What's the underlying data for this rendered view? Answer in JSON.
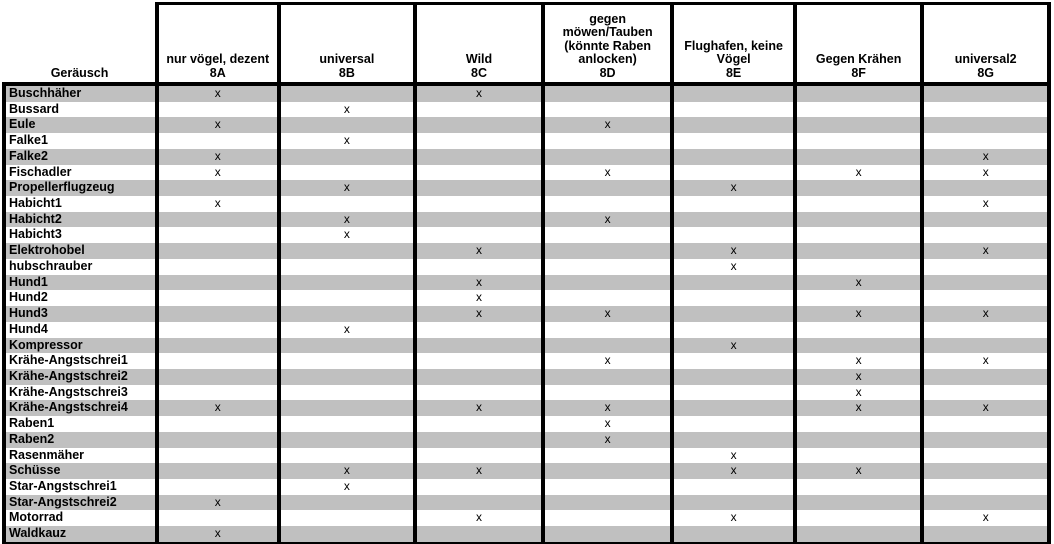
{
  "table": {
    "corner_header": "Geräusch",
    "mark_glyph": "x",
    "colors": {
      "stripe": "#c0c0c0",
      "border": "#000000",
      "background": "#ffffff",
      "text": "#000000"
    },
    "columns": [
      {
        "code": "8A",
        "label_lines": [
          "nur vögel, dezent"
        ]
      },
      {
        "code": "8B",
        "label_lines": [
          "universal"
        ]
      },
      {
        "code": "8C",
        "label_lines": [
          "Wild"
        ]
      },
      {
        "code": "8D",
        "label_lines": [
          "gegen",
          "möwen/Tauben",
          "(könnte Raben",
          "anlocken)"
        ]
      },
      {
        "code": "8E",
        "label_lines": [
          "Flughafen, keine",
          "Vögel"
        ]
      },
      {
        "code": "8F",
        "label_lines": [
          "Gegen Krähen"
        ]
      },
      {
        "code": "8G",
        "label_lines": [
          "universal2"
        ]
      }
    ],
    "rows": [
      {
        "label": "Buschhäher",
        "marks": [
          "8A",
          "8C"
        ]
      },
      {
        "label": "Bussard",
        "marks": [
          "8B"
        ]
      },
      {
        "label": "Eule",
        "marks": [
          "8A",
          "8D"
        ]
      },
      {
        "label": "Falke1",
        "marks": [
          "8B"
        ]
      },
      {
        "label": "Falke2",
        "marks": [
          "8A",
          "8G"
        ]
      },
      {
        "label": "Fischadler",
        "marks": [
          "8A",
          "8D",
          "8F",
          "8G"
        ]
      },
      {
        "label": "Propellerflugzeug",
        "marks": [
          "8B",
          "8E"
        ]
      },
      {
        "label": "Habicht1",
        "marks": [
          "8A",
          "8G"
        ]
      },
      {
        "label": "Habicht2",
        "marks": [
          "8B",
          "8D"
        ]
      },
      {
        "label": "Habicht3",
        "marks": [
          "8B"
        ]
      },
      {
        "label": "Elektrohobel",
        "marks": [
          "8C",
          "8E",
          "8G"
        ]
      },
      {
        "label": "hubschrauber",
        "marks": [
          "8E"
        ]
      },
      {
        "label": "Hund1",
        "marks": [
          "8C",
          "8F"
        ]
      },
      {
        "label": "Hund2",
        "marks": [
          "8C"
        ]
      },
      {
        "label": "Hund3",
        "marks": [
          "8C",
          "8D",
          "8F",
          "8G"
        ]
      },
      {
        "label": "Hund4",
        "marks": [
          "8B"
        ]
      },
      {
        "label": "Kompressor",
        "marks": [
          "8E"
        ]
      },
      {
        "label": "Krähe-Angstschrei1",
        "marks": [
          "8D",
          "8F",
          "8G"
        ]
      },
      {
        "label": "Krähe-Angstschrei2",
        "marks": [
          "8F"
        ]
      },
      {
        "label": "Krähe-Angstschrei3",
        "marks": [
          "8F"
        ]
      },
      {
        "label": "Krähe-Angstschrei4",
        "marks": [
          "8A",
          "8C",
          "8D",
          "8F",
          "8G"
        ]
      },
      {
        "label": "Raben1",
        "marks": [
          "8D"
        ]
      },
      {
        "label": "Raben2",
        "marks": [
          "8D"
        ]
      },
      {
        "label": "Rasenmäher",
        "marks": [
          "8E"
        ]
      },
      {
        "label": "Schüsse",
        "marks": [
          "8B",
          "8C",
          "8E",
          "8F"
        ]
      },
      {
        "label": "Star-Angstschrei1",
        "marks": [
          "8B"
        ]
      },
      {
        "label": "Star-Angstschrei2",
        "marks": [
          "8A"
        ]
      },
      {
        "label": "Motorrad",
        "marks": [
          "8C",
          "8E",
          "8G"
        ]
      },
      {
        "label": "Waldkauz",
        "marks": [
          "8A"
        ]
      }
    ]
  }
}
